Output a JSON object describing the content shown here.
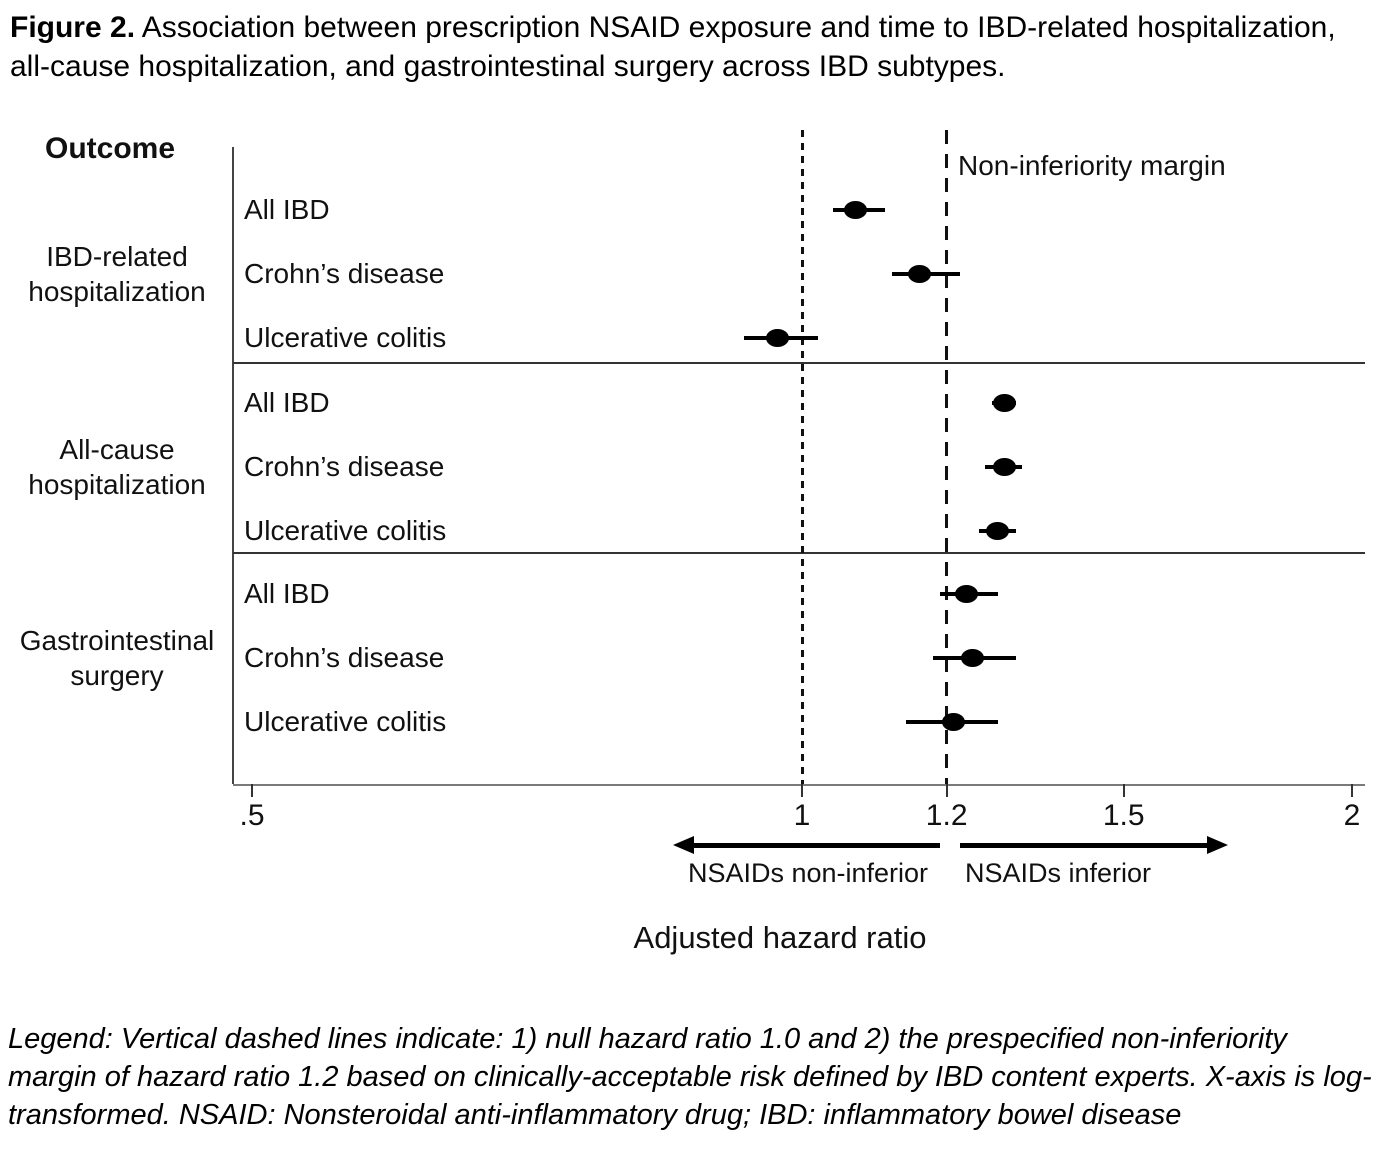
{
  "figure_caption": {
    "prefix": "Figure 2.",
    "text": " Association between prescription NSAID exposure and time to IBD-related hospitalization, all-cause hospitalization, and gastrointestinal surgery across IBD subtypes."
  },
  "column_header": "Outcome",
  "chart_data": {
    "type": "forest",
    "x_scale": "log",
    "xlabel": "Adjusted hazard ratio",
    "xlim": [
      0.49,
      2.03
    ],
    "x_ticks": [
      {
        "value": 0.5,
        "label": ".5"
      },
      {
        "value": 1,
        "label": "1"
      },
      {
        "value": 1.2,
        "label": "1.2"
      },
      {
        "value": 1.5,
        "label": "1.5"
      },
      {
        "value": 2,
        "label": "2"
      }
    ],
    "reference_lines": [
      {
        "value": 1.0,
        "style": "short-dash",
        "label": ""
      },
      {
        "value": 1.2,
        "style": "long-dash",
        "label": "Non-inferiority margin"
      }
    ],
    "groups": [
      {
        "outcome": "IBD-related hospitalization",
        "rows": [
          {
            "label": "All IBD",
            "hr": 1.07,
            "ci_low": 1.04,
            "ci_high": 1.11
          },
          {
            "label": "Crohn’s disease",
            "hr": 1.16,
            "ci_low": 1.12,
            "ci_high": 1.22
          },
          {
            "label": "Ulcerative colitis",
            "hr": 0.97,
            "ci_low": 0.93,
            "ci_high": 1.02
          }
        ]
      },
      {
        "outcome": "All-cause hospitalization",
        "rows": [
          {
            "label": "All IBD",
            "hr": 1.29,
            "ci_low": 1.27,
            "ci_high": 1.31
          },
          {
            "label": "Crohn’s disease",
            "hr": 1.29,
            "ci_low": 1.26,
            "ci_high": 1.32
          },
          {
            "label": "Ulcerative colitis",
            "hr": 1.28,
            "ci_low": 1.25,
            "ci_high": 1.31
          }
        ]
      },
      {
        "outcome": "Gastrointestinal surgery",
        "rows": [
          {
            "label": "All IBD",
            "hr": 1.23,
            "ci_low": 1.19,
            "ci_high": 1.28
          },
          {
            "label": "Crohn’s disease",
            "hr": 1.24,
            "ci_low": 1.18,
            "ci_high": 1.31
          },
          {
            "label": "Ulcerative colitis",
            "hr": 1.21,
            "ci_low": 1.14,
            "ci_high": 1.28
          }
        ]
      }
    ],
    "direction_annotations": [
      {
        "text": "NSAIDs non-inferior",
        "direction": "left",
        "from": 1.19,
        "to": 0.85
      },
      {
        "text": "NSAIDs inferior",
        "direction": "right",
        "from": 1.22,
        "to": 1.71
      }
    ]
  },
  "legend_note": "Legend: Vertical dashed lines indicate: 1) null hazard ratio 1.0 and 2) the prespecified non-inferiority margin of hazard ratio 1.2 based on clinically-acceptable risk defined by IBD content experts. X-axis is log-transformed. NSAID: Nonsteroidal anti-inflammatory drug; IBD: inflammatory bowel disease"
}
